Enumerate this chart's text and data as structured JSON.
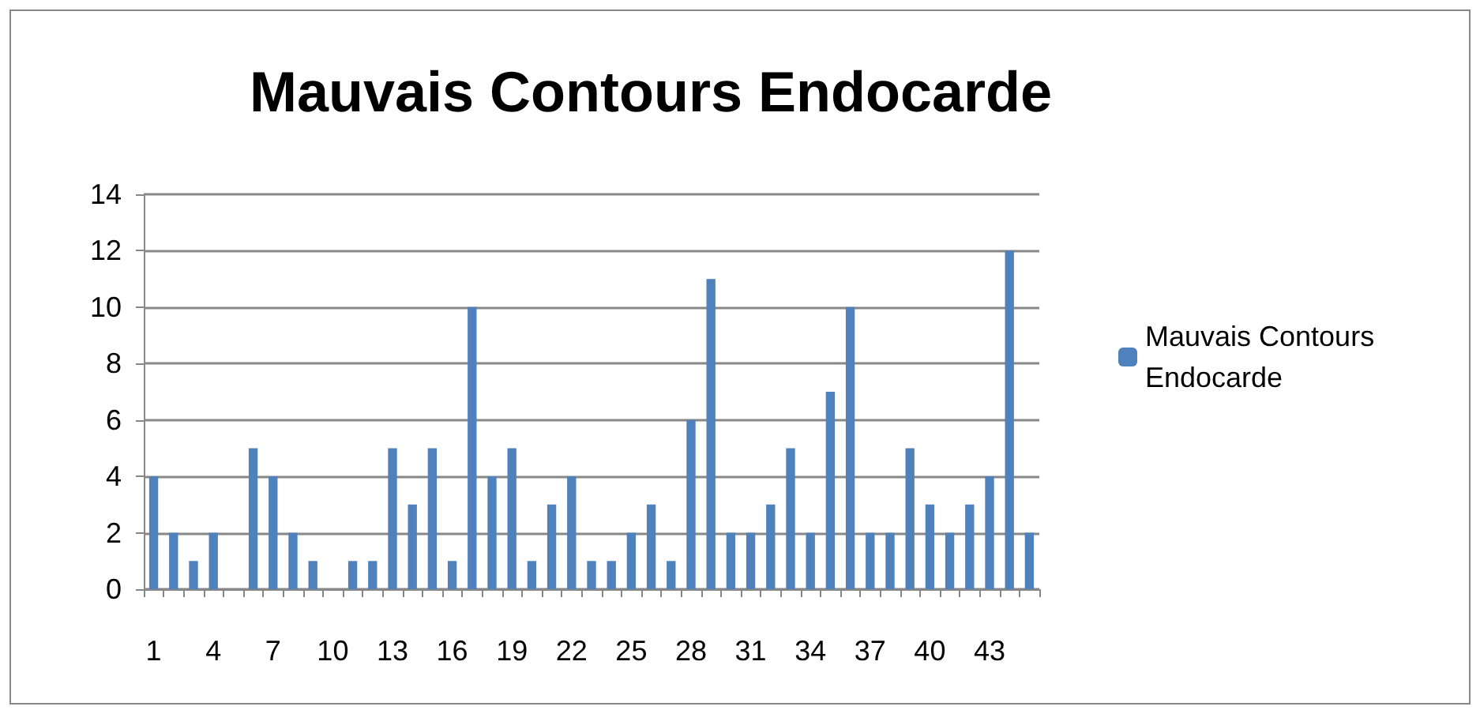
{
  "chart_data": {
    "type": "bar",
    "title": "Mauvais Contours Endocarde",
    "categories": [
      "1",
      null,
      null,
      "4",
      null,
      null,
      "7",
      null,
      null,
      "10",
      null,
      null,
      "13",
      null,
      null,
      "16",
      null,
      null,
      "19",
      null,
      null,
      "22",
      null,
      null,
      "25",
      null,
      null,
      "28",
      null,
      null,
      "31",
      null,
      null,
      "34",
      null,
      null,
      "37",
      null,
      null,
      "40",
      null,
      null,
      "43",
      null,
      null
    ],
    "series": [
      {
        "name": "Mauvais Contours Endocarde",
        "color": "#4f81bd",
        "values": [
          4,
          2,
          1,
          2,
          0,
          5,
          4,
          2,
          1,
          0,
          1,
          1,
          5,
          3,
          5,
          1,
          10,
          4,
          5,
          1,
          3,
          4,
          1,
          1,
          2,
          3,
          1,
          6,
          11,
          2,
          2,
          3,
          5,
          2,
          7,
          10,
          2,
          2,
          5,
          3,
          2,
          3,
          4,
          12,
          2
        ]
      }
    ],
    "ylim": [
      0,
      14
    ],
    "yticks": [
      0,
      2,
      4,
      6,
      8,
      10,
      12,
      14
    ],
    "grid": "y",
    "legend": "right"
  }
}
